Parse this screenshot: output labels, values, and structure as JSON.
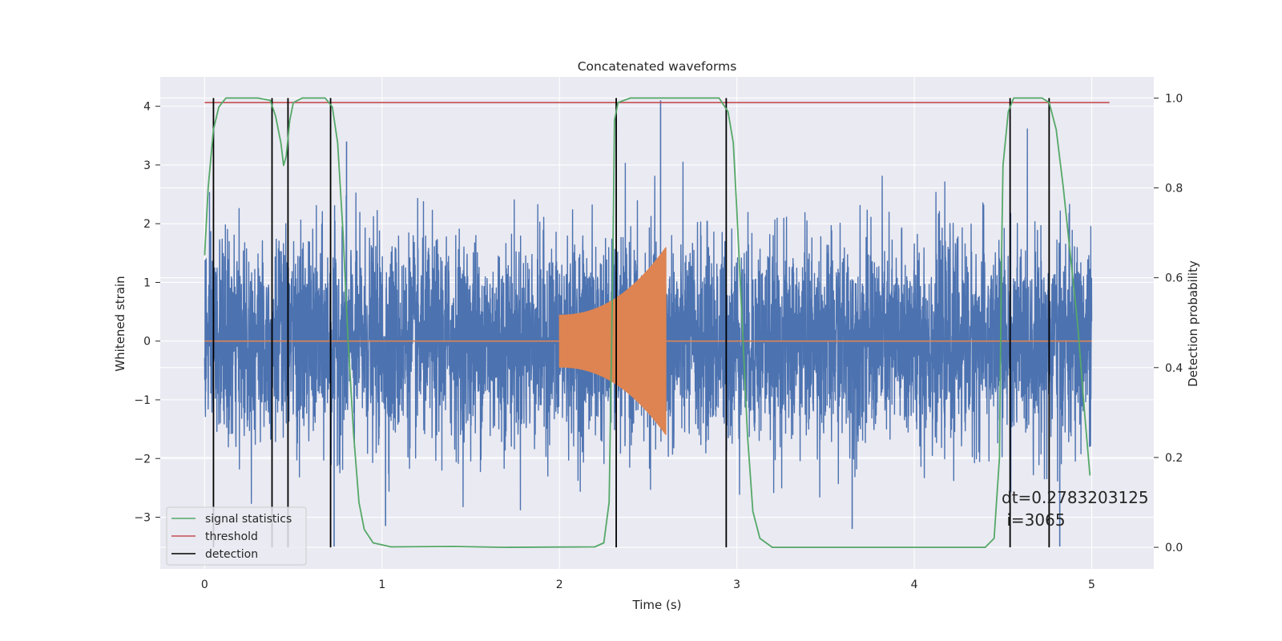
{
  "chart_data": {
    "type": "line",
    "title": "Concatenated waveforms",
    "xlabel": "Time (s)",
    "ylabel": "Whitened strain",
    "y2label": "Detection probability",
    "xlim": [
      -0.25,
      5.35
    ],
    "ylim": [
      -3.88,
      4.5
    ],
    "y2lim": [
      -0.048,
      1.047
    ],
    "xticks": [
      0,
      1,
      2,
      3,
      4,
      5
    ],
    "yticks": [
      -3,
      -2,
      -1,
      0,
      1,
      2,
      3,
      4
    ],
    "y2ticks": [
      0.0,
      0.2,
      0.4,
      0.6,
      0.8,
      1.0
    ],
    "xtick_labels": [
      "0",
      "1",
      "2",
      "3",
      "4",
      "5"
    ],
    "ytick_labels": [
      "−3",
      "−2",
      "−1",
      "0",
      "1",
      "2",
      "3",
      "4"
    ],
    "y2tick_labels": [
      "0.0",
      "0.2",
      "0.4",
      "0.6",
      "0.8",
      "1.0"
    ],
    "grid": true,
    "legend_position": "lower-left",
    "colors": {
      "background": "#eaeaf2",
      "grid": "#ffffff",
      "strain": "#4c72b0",
      "waveform": "#dd8452",
      "statistic": "#55a868",
      "threshold": "#c44e52",
      "detection": "#000000"
    },
    "series": [
      {
        "name": "",
        "axis": "left",
        "description_values": "whitened strain noise, amplitude mostly within ±2.5, spikes up to ~4.1 and down to ~-3.5, x from 0 to 5 s"
      },
      {
        "name": "",
        "axis": "left",
        "waveform_start": 2.0,
        "waveform_end": 2.6,
        "envelope_start": 0.45,
        "envelope_end": 1.6
      },
      {
        "name": "signal statistics",
        "axis": "right",
        "points": [
          [
            0.0,
            0.65
          ],
          [
            0.02,
            0.8
          ],
          [
            0.05,
            0.93
          ],
          [
            0.08,
            0.98
          ],
          [
            0.12,
            1.0
          ],
          [
            0.3,
            1.0
          ],
          [
            0.37,
            0.995
          ],
          [
            0.4,
            0.96
          ],
          [
            0.43,
            0.9
          ],
          [
            0.445,
            0.85
          ],
          [
            0.46,
            0.87
          ],
          [
            0.48,
            0.95
          ],
          [
            0.5,
            0.99
          ],
          [
            0.55,
            1.0
          ],
          [
            0.68,
            1.0
          ],
          [
            0.72,
            0.98
          ],
          [
            0.75,
            0.9
          ],
          [
            0.78,
            0.7
          ],
          [
            0.81,
            0.45
          ],
          [
            0.84,
            0.25
          ],
          [
            0.87,
            0.1
          ],
          [
            0.9,
            0.04
          ],
          [
            0.95,
            0.01
          ],
          [
            1.05,
            0.001
          ],
          [
            1.4,
            0.002
          ],
          [
            1.7,
            0.0
          ],
          [
            2.2,
            0.001
          ],
          [
            2.25,
            0.01
          ],
          [
            2.28,
            0.1
          ],
          [
            2.3,
            0.6
          ],
          [
            2.31,
            0.95
          ],
          [
            2.33,
            0.99
          ],
          [
            2.4,
            1.0
          ],
          [
            2.9,
            1.0
          ],
          [
            2.95,
            0.97
          ],
          [
            2.98,
            0.9
          ],
          [
            3.0,
            0.75
          ],
          [
            3.03,
            0.5
          ],
          [
            3.06,
            0.25
          ],
          [
            3.09,
            0.08
          ],
          [
            3.13,
            0.02
          ],
          [
            3.2,
            0.0
          ],
          [
            4.4,
            0.0
          ],
          [
            4.45,
            0.02
          ],
          [
            4.48,
            0.2
          ],
          [
            4.49,
            0.6
          ],
          [
            4.5,
            0.85
          ],
          [
            4.53,
            0.97
          ],
          [
            4.56,
            1.0
          ],
          [
            4.72,
            1.0
          ],
          [
            4.76,
            0.99
          ],
          [
            4.8,
            0.93
          ],
          [
            4.84,
            0.8
          ],
          [
            4.88,
            0.65
          ],
          [
            4.92,
            0.5
          ],
          [
            4.96,
            0.3
          ],
          [
            4.99,
            0.16
          ]
        ]
      },
      {
        "name": "threshold",
        "axis": "right",
        "x": [
          0.0,
          5.1
        ],
        "values": [
          0.99,
          0.99
        ]
      },
      {
        "name": "detection",
        "axis": "right",
        "times": [
          0.05,
          0.38,
          0.47,
          0.71,
          2.32,
          2.94,
          4.54,
          4.76
        ],
        "from": 0.0,
        "to": 1.0
      }
    ],
    "annotation": {
      "line1": "dt=0.2783203125",
      "line2": " i=3065"
    }
  }
}
